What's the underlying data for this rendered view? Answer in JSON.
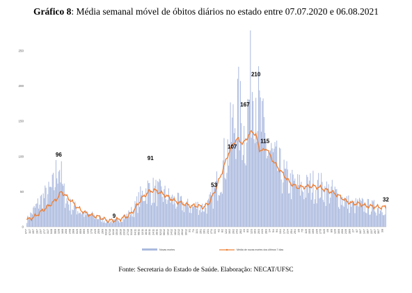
{
  "title_bold": "Gráfico 8",
  "title_rest": ": Média semanal móvel de óbitos diários no estado entre 07.07.2020 e 06.08.2021",
  "source": "Fonte: Secretaria do Estado de Saúde. Elaboração: NECAT/UFSC",
  "colors": {
    "bars": "#aab9de",
    "line": "#ed7d31"
  },
  "chart_data": {
    "type": "bar+line",
    "ylim": [
      0,
      250
    ],
    "yticks": [
      0,
      50,
      100,
      150,
      200,
      250
    ],
    "grid": false,
    "legend_position": "bottom",
    "x_tick_labels": [
      "07/7",
      "11/7",
      "15/7",
      "19/7",
      "23/7",
      "27/7",
      "31/7",
      "04/8",
      "08/8",
      "12/8",
      "16/8",
      "20/8",
      "24/8",
      "28/8",
      "01/9",
      "05/9",
      "09/9",
      "13/9",
      "17/9",
      "21/9",
      "25/9",
      "29/9",
      "03/10",
      "07/10",
      "11/10",
      "15/10",
      "19/10",
      "23/10",
      "27/10",
      "31/10",
      "04/11",
      "08/11",
      "12/11",
      "16/11",
      "20/11",
      "24/11",
      "28/11",
      "02/12",
      "06/12",
      "10/12",
      "14/12",
      "18/12",
      "22/12",
      "26/12",
      "30/12",
      "3/1",
      "7/1",
      "11/1",
      "15/1",
      "19/1",
      "23/1",
      "27/1",
      "31/1",
      "4/2",
      "8/2",
      "12/2",
      "16/2",
      "20/2",
      "24/2",
      "28/2",
      "4/3",
      "8/3",
      "12/3",
      "16/3",
      "20/3",
      "24/3",
      "28/3",
      "1/4",
      "5/4",
      "9/4",
      "13/4",
      "17/4",
      "21/4",
      "25/4",
      "29/4",
      "3/5",
      "7/5",
      "11/5",
      "15/5",
      "19/5",
      "23/5",
      "27/5",
      "31/5",
      "4/6",
      "8/6",
      "12/6",
      "16/6",
      "20/6",
      "24/6",
      "28/6",
      "2/7",
      "6/7",
      "10/7",
      "14/7",
      "18/7",
      "22/7",
      "26/7",
      "30/7",
      "3/8"
    ],
    "series": [
      {
        "name": "Novas mortes",
        "kind": "bar",
        "color": "#aab9de",
        "keypoints": [
          [
            0,
            10
          ],
          [
            8,
            25
          ],
          [
            16,
            40
          ],
          [
            24,
            48
          ],
          [
            30,
            60
          ],
          [
            35,
            98
          ],
          [
            40,
            50
          ],
          [
            48,
            30
          ],
          [
            56,
            25
          ],
          [
            64,
            18
          ],
          [
            72,
            16
          ],
          [
            80,
            12
          ],
          [
            88,
            8
          ],
          [
            96,
            8
          ],
          [
            104,
            12
          ],
          [
            112,
            18
          ],
          [
            118,
            25
          ],
          [
            124,
            40
          ],
          [
            132,
            55
          ],
          [
            140,
            52
          ],
          [
            148,
            48
          ],
          [
            156,
            42
          ],
          [
            164,
            36
          ],
          [
            172,
            32
          ],
          [
            180,
            28
          ],
          [
            188,
            30
          ],
          [
            194,
            28
          ],
          [
            200,
            32
          ],
          [
            206,
            48
          ],
          [
            214,
            80
          ],
          [
            222,
            115
          ],
          [
            228,
            150
          ],
          [
            232,
            170
          ],
          [
            240,
            130
          ],
          [
            246,
            200
          ],
          [
            250,
            225
          ],
          [
            256,
            160
          ],
          [
            262,
            120
          ],
          [
            268,
            105
          ],
          [
            274,
            90
          ],
          [
            282,
            75
          ],
          [
            290,
            62
          ],
          [
            298,
            58
          ],
          [
            306,
            55
          ],
          [
            314,
            60
          ],
          [
            322,
            58
          ],
          [
            330,
            52
          ],
          [
            338,
            48
          ],
          [
            346,
            42
          ],
          [
            352,
            35
          ],
          [
            360,
            30
          ],
          [
            366,
            32
          ],
          [
            372,
            30
          ],
          [
            380,
            28
          ],
          [
            395,
            28
          ]
        ]
      },
      {
        "name": "Média de novas mortes dos últimos 7 dias",
        "kind": "line",
        "color": "#ed7d31",
        "points": [
          [
            0,
            10
          ],
          [
            8,
            14
          ],
          [
            16,
            22
          ],
          [
            24,
            30
          ],
          [
            30,
            36
          ],
          [
            34,
            42
          ],
          [
            38,
            50
          ],
          [
            42,
            45
          ],
          [
            48,
            38
          ],
          [
            56,
            27
          ],
          [
            64,
            20
          ],
          [
            72,
            16
          ],
          [
            80,
            14
          ],
          [
            88,
            9
          ],
          [
            96,
            9
          ],
          [
            104,
            12
          ],
          [
            112,
            16
          ],
          [
            118,
            24
          ],
          [
            126,
            40
          ],
          [
            134,
            50
          ],
          [
            140,
            52
          ],
          [
            148,
            48
          ],
          [
            156,
            42
          ],
          [
            164,
            36
          ],
          [
            172,
            33
          ],
          [
            180,
            30
          ],
          [
            188,
            30
          ],
          [
            194,
            28
          ],
          [
            200,
            33
          ],
          [
            206,
            48
          ],
          [
            214,
            75
          ],
          [
            222,
            105
          ],
          [
            228,
            120
          ],
          [
            232,
            125
          ],
          [
            238,
            118
          ],
          [
            244,
            130
          ],
          [
            248,
            136
          ],
          [
            252,
            130
          ],
          [
            256,
            110
          ],
          [
            260,
            108
          ],
          [
            264,
            112
          ],
          [
            268,
            100
          ],
          [
            274,
            88
          ],
          [
            282,
            75
          ],
          [
            290,
            62
          ],
          [
            298,
            56
          ],
          [
            306,
            57
          ],
          [
            314,
            58
          ],
          [
            322,
            56
          ],
          [
            330,
            52
          ],
          [
            338,
            48
          ],
          [
            346,
            42
          ],
          [
            352,
            36
          ],
          [
            360,
            33
          ],
          [
            366,
            33
          ],
          [
            372,
            30
          ],
          [
            380,
            29
          ],
          [
            388,
            28
          ],
          [
            395,
            28
          ]
        ]
      }
    ],
    "annotations": [
      {
        "label": "96",
        "x": 35,
        "y": 96
      },
      {
        "label": "9",
        "x": 96,
        "y": 9
      },
      {
        "label": "91",
        "x": 136,
        "y": 91
      },
      {
        "label": "53",
        "x": 206,
        "y": 53
      },
      {
        "label": "107",
        "x": 226,
        "y": 107
      },
      {
        "label": "167",
        "x": 240,
        "y": 167
      },
      {
        "label": "210",
        "x": 252,
        "y": 210
      },
      {
        "label": "115",
        "x": 262,
        "y": 115
      },
      {
        "label": "32",
        "x": 395,
        "y": 32
      }
    ]
  }
}
